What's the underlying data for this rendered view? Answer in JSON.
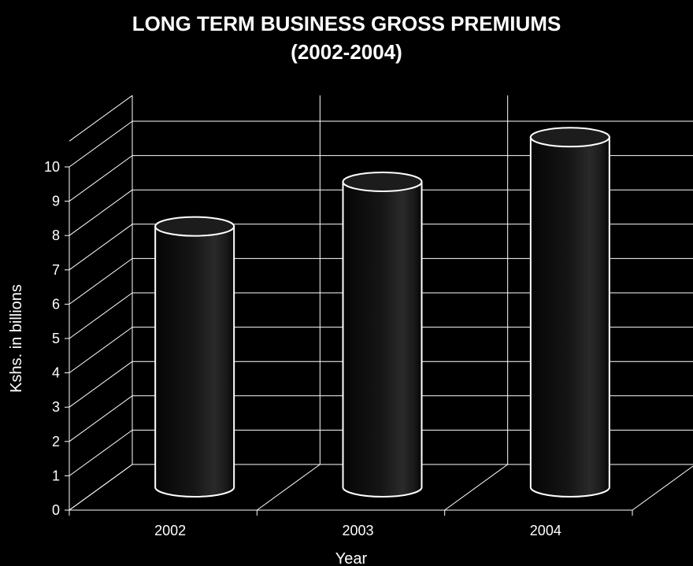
{
  "chart_data": {
    "type": "bar",
    "title": "LONG TERM BUSINESS GROSS PREMIUMS",
    "subtitle": "(2002-2004)",
    "categories": [
      "2002",
      "2003",
      "2004"
    ],
    "values": [
      7.6,
      8.9,
      10.2
    ],
    "xlabel": "Year",
    "ylabel": "Kshs. in billions",
    "ylim": [
      0,
      10
    ],
    "yticks": [
      "0",
      "1",
      "2",
      "3",
      "4",
      "5",
      "6",
      "7",
      "8",
      "9",
      "10"
    ],
    "grid": true,
    "legend": "none",
    "colors": {
      "background": "#000000",
      "bar_fill": "#111111",
      "bar_outline": "#ffffff",
      "grid": "#ffffff",
      "text": "#ffffff"
    }
  }
}
